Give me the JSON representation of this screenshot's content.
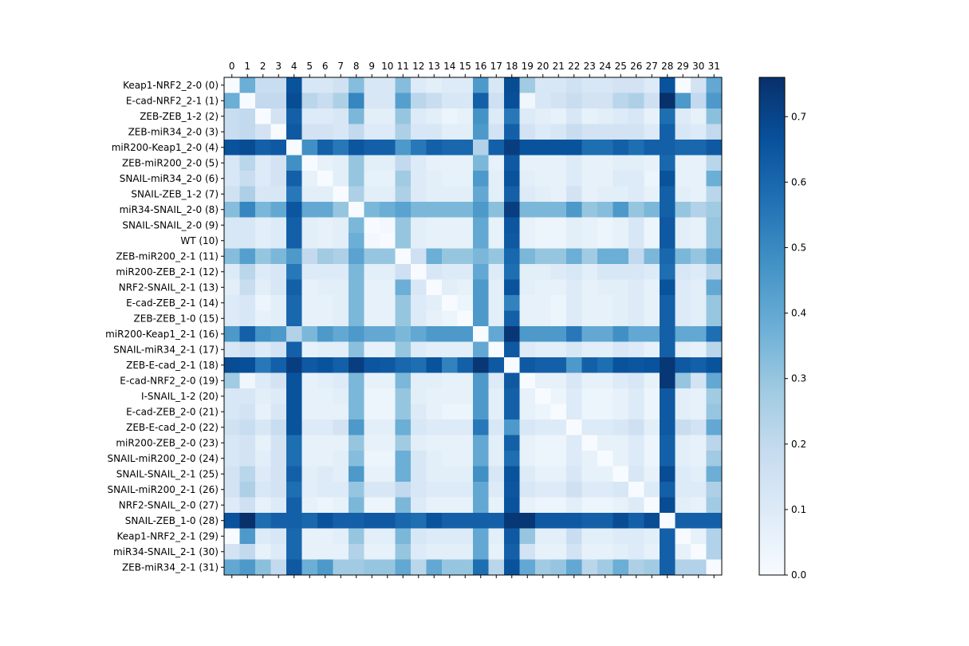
{
  "chart_data": {
    "type": "heatmap",
    "x_tick_labels": [
      "0",
      "1",
      "2",
      "3",
      "4",
      "5",
      "6",
      "7",
      "8",
      "9",
      "10",
      "11",
      "12",
      "13",
      "14",
      "15",
      "16",
      "17",
      "18",
      "19",
      "20",
      "21",
      "22",
      "23",
      "24",
      "25",
      "26",
      "27",
      "28",
      "29",
      "30",
      "31"
    ],
    "y_tick_labels": [
      "Keap1-NRF2_2-0 (0)",
      "E-cad-NRF2_2-1 (1)",
      "ZEB-ZEB_1-2 (2)",
      "ZEB-miR34_2-0 (3)",
      "miR200-Keap1_2-0 (4)",
      "ZEB-miR200_2-0 (5)",
      "SNAIL-miR34_2-0 (6)",
      "SNAIL-ZEB_1-2 (7)",
      "miR34-SNAIL_2-0 (8)",
      "SNAIL-SNAIL_2-0 (9)",
      "WT (10)",
      "ZEB-miR200_2-1 (11)",
      "miR200-ZEB_2-1 (12)",
      "NRF2-SNAIL_2-1 (13)",
      "E-cad-ZEB_2-1 (14)",
      "ZEB-ZEB_1-0 (15)",
      "miR200-Keap1_2-1 (16)",
      "SNAIL-miR34_2-1 (17)",
      "ZEB-E-cad_2-1 (18)",
      "E-cad-NRF2_2-0 (19)",
      "I-SNAIL_1-2 (20)",
      "E-cad-ZEB_2-0 (21)",
      "ZEB-E-cad_2-0 (22)",
      "miR200-ZEB_2-0 (23)",
      "SNAIL-miR200_2-0 (24)",
      "SNAIL-SNAIL_2-1 (25)",
      "SNAIL-miR200_2-1 (26)",
      "NRF2-SNAIL_2-0 (27)",
      "SNAIL-ZEB_1-0 (28)",
      "Keap1-NRF2_2-1 (29)",
      "miR34-SNAIL_2-1 (30)",
      "ZEB-miR34_2-1 (31)"
    ],
    "colorbar": {
      "range": [
        0.0,
        0.76
      ],
      "ticks": [
        0.0,
        0.1,
        0.2,
        0.3,
        0.4,
        0.5,
        0.6,
        0.7
      ],
      "tick_labels": [
        "0.0",
        "0.1",
        "0.2",
        "0.3",
        "0.4",
        "0.5",
        "0.6",
        "0.7"
      ]
    },
    "colormap": "Blues",
    "colors": {
      "low": "#f7fbff",
      "high": "#08306b"
    },
    "values": [
      [
        0.0,
        0.38,
        0.18,
        0.18,
        0.66,
        0.12,
        0.12,
        0.15,
        0.33,
        0.12,
        0.12,
        0.33,
        0.1,
        0.08,
        0.1,
        0.1,
        0.45,
        0.12,
        0.68,
        0.28,
        0.12,
        0.12,
        0.15,
        0.12,
        0.12,
        0.14,
        0.14,
        0.1,
        0.66,
        0.0,
        0.14,
        0.4
      ],
      [
        0.38,
        0.0,
        0.2,
        0.2,
        0.68,
        0.22,
        0.18,
        0.25,
        0.51,
        0.12,
        0.12,
        0.43,
        0.22,
        0.18,
        0.12,
        0.12,
        0.62,
        0.16,
        0.67,
        0.03,
        0.12,
        0.14,
        0.18,
        0.14,
        0.14,
        0.22,
        0.25,
        0.16,
        0.76,
        0.45,
        0.2,
        0.45
      ],
      [
        0.18,
        0.2,
        0.0,
        0.14,
        0.62,
        0.1,
        0.1,
        0.12,
        0.35,
        0.08,
        0.08,
        0.3,
        0.1,
        0.08,
        0.04,
        0.06,
        0.47,
        0.1,
        0.55,
        0.1,
        0.08,
        0.06,
        0.12,
        0.06,
        0.08,
        0.1,
        0.12,
        0.06,
        0.58,
        0.1,
        0.06,
        0.32
      ],
      [
        0.18,
        0.2,
        0.14,
        0.0,
        0.64,
        0.14,
        0.14,
        0.12,
        0.2,
        0.1,
        0.1,
        0.25,
        0.12,
        0.12,
        0.08,
        0.08,
        0.45,
        0.14,
        0.62,
        0.14,
        0.1,
        0.12,
        0.18,
        0.14,
        0.14,
        0.14,
        0.14,
        0.1,
        0.62,
        0.12,
        0.1,
        0.2
      ],
      [
        0.66,
        0.68,
        0.62,
        0.64,
        0.0,
        0.48,
        0.62,
        0.55,
        0.65,
        0.62,
        0.62,
        0.45,
        0.55,
        0.62,
        0.6,
        0.6,
        0.24,
        0.62,
        0.72,
        0.66,
        0.66,
        0.66,
        0.66,
        0.58,
        0.58,
        0.62,
        0.58,
        0.62,
        0.62,
        0.6,
        0.6,
        0.64
      ],
      [
        0.12,
        0.22,
        0.1,
        0.14,
        0.48,
        0.0,
        0.06,
        0.08,
        0.3,
        0.08,
        0.08,
        0.2,
        0.1,
        0.06,
        0.06,
        0.06,
        0.35,
        0.06,
        0.64,
        0.06,
        0.06,
        0.06,
        0.1,
        0.06,
        0.06,
        0.08,
        0.08,
        0.06,
        0.6,
        0.06,
        0.06,
        0.22
      ],
      [
        0.12,
        0.18,
        0.1,
        0.14,
        0.62,
        0.06,
        0.0,
        0.08,
        0.3,
        0.06,
        0.06,
        0.28,
        0.1,
        0.08,
        0.06,
        0.06,
        0.45,
        0.08,
        0.66,
        0.08,
        0.06,
        0.06,
        0.1,
        0.06,
        0.06,
        0.1,
        0.1,
        0.04,
        0.66,
        0.06,
        0.06,
        0.38
      ],
      [
        0.15,
        0.25,
        0.12,
        0.12,
        0.55,
        0.08,
        0.08,
        0.0,
        0.25,
        0.08,
        0.08,
        0.25,
        0.1,
        0.08,
        0.08,
        0.08,
        0.4,
        0.08,
        0.62,
        0.1,
        0.08,
        0.06,
        0.14,
        0.06,
        0.08,
        0.08,
        0.1,
        0.06,
        0.62,
        0.08,
        0.06,
        0.22
      ],
      [
        0.33,
        0.51,
        0.35,
        0.4,
        0.65,
        0.4,
        0.4,
        0.3,
        0.0,
        0.35,
        0.38,
        0.42,
        0.35,
        0.35,
        0.35,
        0.35,
        0.45,
        0.32,
        0.72,
        0.35,
        0.35,
        0.35,
        0.45,
        0.3,
        0.33,
        0.45,
        0.3,
        0.35,
        0.62,
        0.3,
        0.24,
        0.28
      ],
      [
        0.12,
        0.12,
        0.08,
        0.1,
        0.62,
        0.08,
        0.06,
        0.08,
        0.35,
        0.0,
        0.02,
        0.3,
        0.08,
        0.06,
        0.06,
        0.06,
        0.4,
        0.06,
        0.65,
        0.06,
        0.04,
        0.04,
        0.08,
        0.06,
        0.04,
        0.06,
        0.12,
        0.04,
        0.64,
        0.08,
        0.06,
        0.3
      ],
      [
        0.12,
        0.12,
        0.08,
        0.1,
        0.62,
        0.08,
        0.06,
        0.08,
        0.38,
        0.02,
        0.0,
        0.3,
        0.08,
        0.06,
        0.06,
        0.06,
        0.4,
        0.06,
        0.64,
        0.06,
        0.04,
        0.04,
        0.08,
        0.06,
        0.04,
        0.06,
        0.12,
        0.04,
        0.64,
        0.08,
        0.06,
        0.3
      ],
      [
        0.33,
        0.43,
        0.3,
        0.35,
        0.45,
        0.2,
        0.28,
        0.25,
        0.42,
        0.3,
        0.3,
        0.0,
        0.16,
        0.38,
        0.3,
        0.3,
        0.35,
        0.3,
        0.6,
        0.35,
        0.3,
        0.3,
        0.38,
        0.28,
        0.38,
        0.38,
        0.2,
        0.35,
        0.6,
        0.35,
        0.3,
        0.4
      ],
      [
        0.1,
        0.22,
        0.1,
        0.12,
        0.55,
        0.1,
        0.1,
        0.1,
        0.35,
        0.08,
        0.08,
        0.16,
        0.0,
        0.12,
        0.1,
        0.1,
        0.4,
        0.1,
        0.58,
        0.08,
        0.08,
        0.1,
        0.12,
        0.08,
        0.12,
        0.12,
        0.12,
        0.1,
        0.58,
        0.12,
        0.1,
        0.22
      ],
      [
        0.08,
        0.18,
        0.08,
        0.12,
        0.62,
        0.06,
        0.08,
        0.08,
        0.35,
        0.06,
        0.06,
        0.38,
        0.12,
        0.0,
        0.08,
        0.06,
        0.45,
        0.08,
        0.66,
        0.08,
        0.06,
        0.06,
        0.1,
        0.06,
        0.08,
        0.08,
        0.1,
        0.06,
        0.66,
        0.1,
        0.08,
        0.4
      ],
      [
        0.1,
        0.12,
        0.04,
        0.08,
        0.6,
        0.06,
        0.06,
        0.08,
        0.35,
        0.06,
        0.06,
        0.3,
        0.1,
        0.08,
        0.0,
        0.04,
        0.45,
        0.08,
        0.52,
        0.06,
        0.06,
        0.04,
        0.1,
        0.06,
        0.06,
        0.08,
        0.1,
        0.06,
        0.62,
        0.1,
        0.08,
        0.3
      ],
      [
        0.1,
        0.12,
        0.06,
        0.08,
        0.6,
        0.06,
        0.06,
        0.08,
        0.35,
        0.06,
        0.06,
        0.3,
        0.1,
        0.06,
        0.04,
        0.0,
        0.45,
        0.08,
        0.62,
        0.06,
        0.06,
        0.04,
        0.1,
        0.06,
        0.06,
        0.08,
        0.1,
        0.06,
        0.62,
        0.1,
        0.08,
        0.3
      ],
      [
        0.45,
        0.62,
        0.47,
        0.45,
        0.24,
        0.35,
        0.45,
        0.4,
        0.45,
        0.4,
        0.4,
        0.35,
        0.4,
        0.45,
        0.45,
        0.45,
        0.0,
        0.4,
        0.74,
        0.45,
        0.45,
        0.45,
        0.55,
        0.4,
        0.4,
        0.48,
        0.4,
        0.4,
        0.62,
        0.4,
        0.4,
        0.58
      ],
      [
        0.12,
        0.16,
        0.1,
        0.14,
        0.62,
        0.06,
        0.08,
        0.08,
        0.32,
        0.06,
        0.06,
        0.3,
        0.1,
        0.08,
        0.08,
        0.08,
        0.4,
        0.0,
        0.64,
        0.1,
        0.08,
        0.08,
        0.12,
        0.08,
        0.08,
        0.12,
        0.1,
        0.06,
        0.62,
        0.08,
        0.06,
        0.22
      ],
      [
        0.68,
        0.67,
        0.55,
        0.62,
        0.72,
        0.64,
        0.66,
        0.62,
        0.72,
        0.65,
        0.64,
        0.6,
        0.58,
        0.66,
        0.52,
        0.62,
        0.74,
        0.64,
        0.0,
        0.64,
        0.62,
        0.62,
        0.45,
        0.62,
        0.58,
        0.66,
        0.65,
        0.66,
        0.74,
        0.64,
        0.62,
        0.66
      ],
      [
        0.28,
        0.03,
        0.1,
        0.14,
        0.66,
        0.06,
        0.08,
        0.1,
        0.35,
        0.06,
        0.06,
        0.35,
        0.08,
        0.08,
        0.06,
        0.06,
        0.45,
        0.1,
        0.64,
        0.0,
        0.06,
        0.06,
        0.12,
        0.06,
        0.06,
        0.1,
        0.12,
        0.06,
        0.74,
        0.3,
        0.14,
        0.4
      ],
      [
        0.12,
        0.12,
        0.08,
        0.1,
        0.66,
        0.06,
        0.06,
        0.08,
        0.35,
        0.04,
        0.04,
        0.3,
        0.08,
        0.06,
        0.06,
        0.06,
        0.45,
        0.08,
        0.62,
        0.06,
        0.0,
        0.04,
        0.1,
        0.04,
        0.04,
        0.06,
        0.1,
        0.04,
        0.64,
        0.08,
        0.06,
        0.28
      ],
      [
        0.12,
        0.14,
        0.06,
        0.12,
        0.66,
        0.06,
        0.06,
        0.06,
        0.35,
        0.04,
        0.04,
        0.3,
        0.1,
        0.06,
        0.04,
        0.04,
        0.45,
        0.08,
        0.62,
        0.06,
        0.04,
        0.0,
        0.1,
        0.04,
        0.04,
        0.06,
        0.1,
        0.04,
        0.64,
        0.08,
        0.06,
        0.3
      ],
      [
        0.15,
        0.18,
        0.12,
        0.18,
        0.66,
        0.1,
        0.1,
        0.14,
        0.45,
        0.08,
        0.08,
        0.38,
        0.12,
        0.1,
        0.1,
        0.1,
        0.55,
        0.12,
        0.45,
        0.12,
        0.1,
        0.1,
        0.0,
        0.1,
        0.1,
        0.12,
        0.16,
        0.08,
        0.64,
        0.18,
        0.14,
        0.4
      ],
      [
        0.12,
        0.14,
        0.06,
        0.14,
        0.58,
        0.06,
        0.06,
        0.06,
        0.3,
        0.06,
        0.06,
        0.28,
        0.08,
        0.06,
        0.06,
        0.06,
        0.4,
        0.08,
        0.62,
        0.06,
        0.04,
        0.04,
        0.1,
        0.0,
        0.06,
        0.06,
        0.1,
        0.04,
        0.62,
        0.08,
        0.06,
        0.22
      ],
      [
        0.12,
        0.14,
        0.08,
        0.14,
        0.58,
        0.06,
        0.06,
        0.08,
        0.33,
        0.04,
        0.04,
        0.38,
        0.12,
        0.08,
        0.06,
        0.06,
        0.4,
        0.08,
        0.58,
        0.06,
        0.04,
        0.04,
        0.1,
        0.06,
        0.0,
        0.06,
        0.1,
        0.04,
        0.62,
        0.08,
        0.06,
        0.28
      ],
      [
        0.14,
        0.22,
        0.1,
        0.14,
        0.62,
        0.08,
        0.1,
        0.08,
        0.45,
        0.06,
        0.06,
        0.38,
        0.12,
        0.08,
        0.08,
        0.08,
        0.48,
        0.12,
        0.66,
        0.1,
        0.06,
        0.06,
        0.12,
        0.06,
        0.06,
        0.0,
        0.12,
        0.06,
        0.68,
        0.1,
        0.08,
        0.38
      ],
      [
        0.14,
        0.25,
        0.12,
        0.14,
        0.58,
        0.08,
        0.1,
        0.1,
        0.3,
        0.12,
        0.12,
        0.2,
        0.12,
        0.1,
        0.1,
        0.1,
        0.4,
        0.1,
        0.65,
        0.12,
        0.1,
        0.1,
        0.16,
        0.1,
        0.1,
        0.12,
        0.0,
        0.1,
        0.62,
        0.1,
        0.1,
        0.25
      ],
      [
        0.1,
        0.16,
        0.06,
        0.1,
        0.62,
        0.06,
        0.04,
        0.06,
        0.35,
        0.04,
        0.04,
        0.35,
        0.1,
        0.06,
        0.06,
        0.06,
        0.4,
        0.06,
        0.66,
        0.06,
        0.04,
        0.04,
        0.08,
        0.04,
        0.04,
        0.06,
        0.1,
        0.0,
        0.68,
        0.08,
        0.06,
        0.28
      ],
      [
        0.66,
        0.76,
        0.58,
        0.62,
        0.62,
        0.6,
        0.66,
        0.62,
        0.62,
        0.64,
        0.64,
        0.6,
        0.58,
        0.66,
        0.62,
        0.62,
        0.62,
        0.62,
        0.74,
        0.74,
        0.64,
        0.64,
        0.64,
        0.62,
        0.62,
        0.68,
        0.62,
        0.68,
        0.0,
        0.62,
        0.62,
        0.62
      ],
      [
        0.0,
        0.45,
        0.1,
        0.12,
        0.6,
        0.06,
        0.06,
        0.08,
        0.3,
        0.08,
        0.08,
        0.35,
        0.12,
        0.1,
        0.1,
        0.1,
        0.4,
        0.08,
        0.64,
        0.3,
        0.08,
        0.08,
        0.18,
        0.08,
        0.08,
        0.1,
        0.1,
        0.08,
        0.62,
        0.0,
        0.06,
        0.24
      ],
      [
        0.14,
        0.2,
        0.06,
        0.1,
        0.6,
        0.06,
        0.06,
        0.06,
        0.24,
        0.06,
        0.06,
        0.3,
        0.1,
        0.08,
        0.08,
        0.08,
        0.4,
        0.06,
        0.62,
        0.14,
        0.06,
        0.06,
        0.14,
        0.06,
        0.06,
        0.08,
        0.1,
        0.06,
        0.62,
        0.06,
        0.0,
        0.24
      ],
      [
        0.4,
        0.45,
        0.32,
        0.2,
        0.64,
        0.38,
        0.45,
        0.28,
        0.28,
        0.3,
        0.3,
        0.4,
        0.22,
        0.4,
        0.3,
        0.3,
        0.58,
        0.22,
        0.66,
        0.4,
        0.28,
        0.3,
        0.4,
        0.22,
        0.28,
        0.38,
        0.25,
        0.28,
        0.62,
        0.24,
        0.24,
        0.0
      ]
    ]
  }
}
